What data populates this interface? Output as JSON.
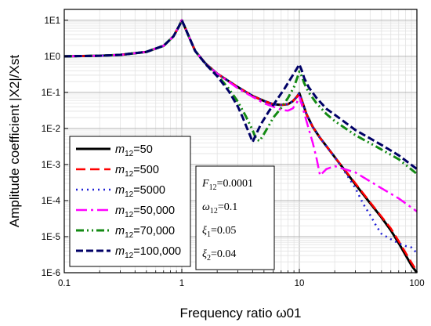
{
  "chart_data": {
    "type": "line",
    "title": "",
    "xlabel": "Frequency ratio ω01",
    "ylabel": "Amplitude coefficient |X2|/Xst",
    "xscale": "log",
    "yscale": "log",
    "xlim": [
      0.1,
      100
    ],
    "ylim": [
      1e-06,
      20
    ],
    "grid": "major and minor",
    "legend_placement": "bottom-left",
    "x_ticks": [
      "0.1",
      "1",
      "10",
      "100"
    ],
    "y_ticks": [
      "1E-6",
      "1E-5",
      "1E-4",
      "1E-3",
      "1E-2",
      "1E-1",
      "1E0",
      "1E1"
    ],
    "series": [
      {
        "name": "m12=50",
        "legend_prefix": "m",
        "legend_sub": "12",
        "legend_value": "=50",
        "color": "#000000",
        "dash": "",
        "width": 3,
        "x": [
          0.1,
          0.2,
          0.3,
          0.5,
          0.7,
          0.85,
          0.95,
          1.0,
          1.05,
          1.15,
          1.3,
          1.6,
          2,
          3,
          4,
          5,
          6,
          7,
          8,
          8.8,
          9.5,
          10,
          10.5,
          11.5,
          13,
          15,
          20,
          30,
          40,
          50,
          60,
          70,
          80,
          90,
          100
        ],
        "y": [
          1.0,
          1.04,
          1.1,
          1.33,
          1.96,
          3.6,
          7.0,
          10.0,
          7.0,
          3.5,
          1.4,
          0.62,
          0.33,
          0.14,
          0.08,
          0.058,
          0.047,
          0.045,
          0.047,
          0.057,
          0.075,
          0.095,
          0.06,
          0.025,
          0.011,
          0.0055,
          0.0016,
          0.00028,
          8.5e-05,
          3.4e-05,
          1.5e-05,
          6.6e-06,
          3.1e-06,
          1.6e-06,
          1e-06
        ]
      },
      {
        "name": "m12=500",
        "legend_prefix": "m",
        "legend_sub": "12",
        "legend_value": "=500",
        "color": "#ff0000",
        "dash": "12 6",
        "width": 2.5,
        "x": [
          0.1,
          0.2,
          0.3,
          0.5,
          0.7,
          0.85,
          0.95,
          1.0,
          1.05,
          1.15,
          1.3,
          1.6,
          2,
          3,
          4,
          5,
          6,
          7,
          8,
          8.8,
          9.5,
          10,
          10.5,
          11.5,
          13,
          15,
          20,
          30,
          40,
          50,
          60,
          70,
          80,
          90,
          100
        ],
        "y": [
          1.0,
          1.04,
          1.1,
          1.33,
          1.96,
          3.6,
          7.0,
          10.0,
          7.0,
          3.5,
          1.4,
          0.62,
          0.33,
          0.14,
          0.08,
          0.058,
          0.047,
          0.045,
          0.047,
          0.057,
          0.075,
          0.095,
          0.06,
          0.025,
          0.011,
          0.0055,
          0.0016,
          0.0003,
          9e-05,
          3.6e-05,
          1.7e-05,
          7.5e-06,
          3.6e-06,
          1.9e-06,
          1.1e-06
        ]
      },
      {
        "name": "m12=5000",
        "legend_prefix": "m",
        "legend_sub": "12",
        "legend_value": "=5000",
        "color": "#1f1fd6",
        "dash": "2 5",
        "width": 2.5,
        "x": [
          0.1,
          0.2,
          0.3,
          0.5,
          0.7,
          0.85,
          0.95,
          1.0,
          1.05,
          1.15,
          1.3,
          1.6,
          2,
          3,
          4,
          5,
          6,
          7,
          8,
          8.8,
          9.5,
          10,
          10.5,
          11.5,
          13,
          15,
          17,
          20,
          25,
          30,
          35,
          40,
          45,
          50,
          60,
          70,
          80,
          90,
          100
        ],
        "y": [
          1.0,
          1.04,
          1.1,
          1.33,
          1.96,
          3.6,
          7.0,
          10.0,
          7.0,
          3.5,
          1.4,
          0.62,
          0.33,
          0.14,
          0.08,
          0.058,
          0.047,
          0.045,
          0.047,
          0.057,
          0.075,
          0.095,
          0.06,
          0.025,
          0.011,
          0.0055,
          0.0032,
          0.0016,
          0.00055,
          0.00022,
          8e-05,
          4e-05,
          2e-05,
          1.2e-05,
          8.5e-06,
          6.5e-06,
          5.5e-06,
          5e-06,
          3.5e-06
        ]
      },
      {
        "name": "m12=50,000",
        "legend_prefix": "m",
        "legend_sub": "12",
        "legend_value": "=50,000",
        "color": "#ff00ff",
        "dash": "14 5 3 5",
        "width": 2.5,
        "x": [
          0.1,
          0.2,
          0.3,
          0.5,
          0.7,
          0.85,
          0.95,
          1.0,
          1.05,
          1.15,
          1.3,
          1.6,
          2,
          3,
          4,
          5,
          6,
          7,
          8,
          8.8,
          9.5,
          10,
          10.5,
          11.5,
          13,
          14,
          15,
          17,
          20,
          30,
          50,
          70,
          100
        ],
        "y": [
          1.0,
          1.04,
          1.1,
          1.33,
          1.96,
          3.6,
          7.0,
          10.0,
          7.0,
          3.5,
          1.4,
          0.62,
          0.33,
          0.13,
          0.075,
          0.05,
          0.04,
          0.033,
          0.031,
          0.036,
          0.052,
          0.075,
          0.045,
          0.016,
          0.004,
          0.0015,
          0.0005,
          0.00075,
          0.0009,
          0.0006,
          0.00022,
          0.000115,
          5e-05
        ]
      },
      {
        "name": "m12=70,000",
        "legend_prefix": "m",
        "legend_sub": "12",
        "legend_value": "=70,000",
        "color": "#138a13",
        "dash": "10 4 2 4 2 4",
        "width": 3,
        "x": [
          0.1,
          0.2,
          0.3,
          0.5,
          0.7,
          0.85,
          0.95,
          1.0,
          1.05,
          1.15,
          1.3,
          1.6,
          2,
          2.5,
          3,
          3.5,
          4,
          4.3,
          4.6,
          5,
          5.5,
          6,
          7,
          8,
          9,
          9.7,
          10,
          10.5,
          11,
          12,
          14,
          17,
          20,
          30,
          50,
          70,
          100
        ],
        "y": [
          1.0,
          1.04,
          1.1,
          1.33,
          1.96,
          3.6,
          7.0,
          10.0,
          7.0,
          3.5,
          1.4,
          0.6,
          0.3,
          0.13,
          0.055,
          0.022,
          0.009,
          0.005,
          0.0045,
          0.007,
          0.012,
          0.02,
          0.037,
          0.07,
          0.14,
          0.28,
          0.38,
          0.28,
          0.18,
          0.1,
          0.05,
          0.025,
          0.016,
          0.0065,
          0.0026,
          0.0014,
          0.00055
        ]
      },
      {
        "name": "m12=100,000",
        "legend_prefix": "m",
        "legend_sub": "12",
        "legend_value": "=100,000",
        "color": "#000066",
        "dash": "9 4",
        "width": 3,
        "x": [
          0.1,
          0.2,
          0.3,
          0.5,
          0.7,
          0.85,
          0.95,
          1.0,
          1.05,
          1.15,
          1.3,
          1.6,
          2,
          2.5,
          3,
          3.3,
          3.6,
          3.8,
          4,
          4.3,
          4.7,
          5.5,
          6.5,
          7.5,
          8.5,
          9.5,
          10,
          10.5,
          11,
          12,
          14,
          17,
          20,
          30,
          50,
          70,
          100
        ],
        "y": [
          1.0,
          1.04,
          1.1,
          1.33,
          1.96,
          3.6,
          7.0,
          10.0,
          7.0,
          3.5,
          1.4,
          0.6,
          0.28,
          0.11,
          0.04,
          0.02,
          0.01,
          0.0065,
          0.0042,
          0.007,
          0.013,
          0.03,
          0.065,
          0.13,
          0.25,
          0.45,
          0.6,
          0.4,
          0.25,
          0.14,
          0.07,
          0.035,
          0.024,
          0.009,
          0.0035,
          0.0018,
          0.00075
        ]
      }
    ],
    "annotations": [
      {
        "prefix": "F",
        "sub": "12",
        "value": "=0.0001"
      },
      {
        "prefix": "ω",
        "sub": "12",
        "value": "=0.1"
      },
      {
        "prefix": "ξ",
        "sub": "1",
        "value": "=0.05"
      },
      {
        "prefix": "ξ",
        "sub": "2",
        "value": "=0.04"
      }
    ]
  }
}
